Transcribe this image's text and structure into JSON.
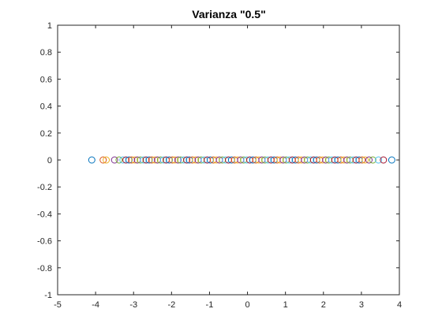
{
  "figure": {
    "title": "Varianza \"0.5\""
  },
  "chart_data": {
    "type": "scatter",
    "title": "Varianza \"0.5\"",
    "xlabel": "",
    "ylabel": "",
    "xlim": [
      -5,
      4
    ],
    "ylim": [
      -1,
      1
    ],
    "xticks": [
      -5,
      -4,
      -3,
      -2,
      -1,
      0,
      1,
      2,
      3,
      4
    ],
    "yticks": [
      -1,
      -0.8,
      -0.6,
      -0.4,
      -0.2,
      0,
      0.2,
      0.4,
      0.6,
      0.8,
      1
    ],
    "xtick_labels": [
      "-5",
      "-4",
      "-3",
      "-2",
      "-1",
      "0",
      "1",
      "2",
      "3",
      "4"
    ],
    "ytick_labels": [
      "-1",
      "-0.8",
      "-0.6",
      "-0.4",
      "-0.2",
      "0",
      "0.2",
      "0.4",
      "0.6",
      "0.8",
      "1"
    ],
    "grid": false,
    "marker": "circle-open",
    "palette": [
      "#0072BD",
      "#D95319",
      "#EDB120",
      "#7E2F8E",
      "#77AC30",
      "#4DBEEE",
      "#A2142F"
    ],
    "points": [
      {
        "x": -4.1,
        "y": 0
      },
      {
        "x": -3.8,
        "y": 0
      },
      {
        "x": -3.72,
        "y": 0
      },
      {
        "x": -3.5,
        "y": 0
      },
      {
        "x": -3.38,
        "y": 0
      },
      {
        "x": -3.28,
        "y": 0
      },
      {
        "x": -3.2,
        "y": 0
      },
      {
        "x": -3.12,
        "y": 0
      },
      {
        "x": -3.05,
        "y": 0
      },
      {
        "x": -2.97,
        "y": 0
      },
      {
        "x": -2.9,
        "y": 0
      },
      {
        "x": -2.82,
        "y": 0
      },
      {
        "x": -2.74,
        "y": 0
      },
      {
        "x": -2.67,
        "y": 0
      },
      {
        "x": -2.59,
        "y": 0
      },
      {
        "x": -2.52,
        "y": 0
      },
      {
        "x": -2.44,
        "y": 0
      },
      {
        "x": -2.37,
        "y": 0
      },
      {
        "x": -2.29,
        "y": 0
      },
      {
        "x": -2.21,
        "y": 0
      },
      {
        "x": -2.14,
        "y": 0
      },
      {
        "x": -2.06,
        "y": 0
      },
      {
        "x": -1.98,
        "y": 0
      },
      {
        "x": -1.91,
        "y": 0
      },
      {
        "x": -1.83,
        "y": 0
      },
      {
        "x": -1.76,
        "y": 0
      },
      {
        "x": -1.68,
        "y": 0
      },
      {
        "x": -1.6,
        "y": 0
      },
      {
        "x": -1.53,
        "y": 0
      },
      {
        "x": -1.45,
        "y": 0
      },
      {
        "x": -1.37,
        "y": 0
      },
      {
        "x": -1.3,
        "y": 0
      },
      {
        "x": -1.22,
        "y": 0
      },
      {
        "x": -1.14,
        "y": 0
      },
      {
        "x": -1.06,
        "y": 0
      },
      {
        "x": -0.98,
        "y": 0
      },
      {
        "x": -0.9,
        "y": 0
      },
      {
        "x": -0.82,
        "y": 0
      },
      {
        "x": -0.74,
        "y": 0
      },
      {
        "x": -0.66,
        "y": 0
      },
      {
        "x": -0.58,
        "y": 0
      },
      {
        "x": -0.5,
        "y": 0
      },
      {
        "x": -0.42,
        "y": 0
      },
      {
        "x": -0.34,
        "y": 0
      },
      {
        "x": -0.26,
        "y": 0
      },
      {
        "x": -0.18,
        "y": 0
      },
      {
        "x": -0.1,
        "y": 0
      },
      {
        "x": -0.02,
        "y": 0
      },
      {
        "x": 0.06,
        "y": 0
      },
      {
        "x": 0.14,
        "y": 0
      },
      {
        "x": 0.22,
        "y": 0
      },
      {
        "x": 0.3,
        "y": 0
      },
      {
        "x": 0.38,
        "y": 0
      },
      {
        "x": 0.46,
        "y": 0
      },
      {
        "x": 0.54,
        "y": 0
      },
      {
        "x": 0.62,
        "y": 0
      },
      {
        "x": 0.7,
        "y": 0
      },
      {
        "x": 0.78,
        "y": 0
      },
      {
        "x": 0.86,
        "y": 0
      },
      {
        "x": 0.94,
        "y": 0
      },
      {
        "x": 1.02,
        "y": 0
      },
      {
        "x": 1.1,
        "y": 0
      },
      {
        "x": 1.18,
        "y": 0
      },
      {
        "x": 1.26,
        "y": 0
      },
      {
        "x": 1.34,
        "y": 0
      },
      {
        "x": 1.42,
        "y": 0
      },
      {
        "x": 1.5,
        "y": 0
      },
      {
        "x": 1.58,
        "y": 0
      },
      {
        "x": 1.66,
        "y": 0
      },
      {
        "x": 1.74,
        "y": 0
      },
      {
        "x": 1.82,
        "y": 0
      },
      {
        "x": 1.9,
        "y": 0
      },
      {
        "x": 1.98,
        "y": 0
      },
      {
        "x": 2.06,
        "y": 0
      },
      {
        "x": 2.14,
        "y": 0
      },
      {
        "x": 2.22,
        "y": 0
      },
      {
        "x": 2.3,
        "y": 0
      },
      {
        "x": 2.38,
        "y": 0
      },
      {
        "x": 2.46,
        "y": 0
      },
      {
        "x": 2.54,
        "y": 0
      },
      {
        "x": 2.62,
        "y": 0
      },
      {
        "x": 2.7,
        "y": 0
      },
      {
        "x": 2.78,
        "y": 0
      },
      {
        "x": 2.86,
        "y": 0
      },
      {
        "x": 2.94,
        "y": 0
      },
      {
        "x": 3.02,
        "y": 0
      },
      {
        "x": 3.1,
        "y": 0
      },
      {
        "x": 3.2,
        "y": 0
      },
      {
        "x": 3.3,
        "y": 0
      },
      {
        "x": 3.45,
        "y": 0
      },
      {
        "x": 3.58,
        "y": 0
      },
      {
        "x": 3.8,
        "y": 0
      }
    ]
  }
}
